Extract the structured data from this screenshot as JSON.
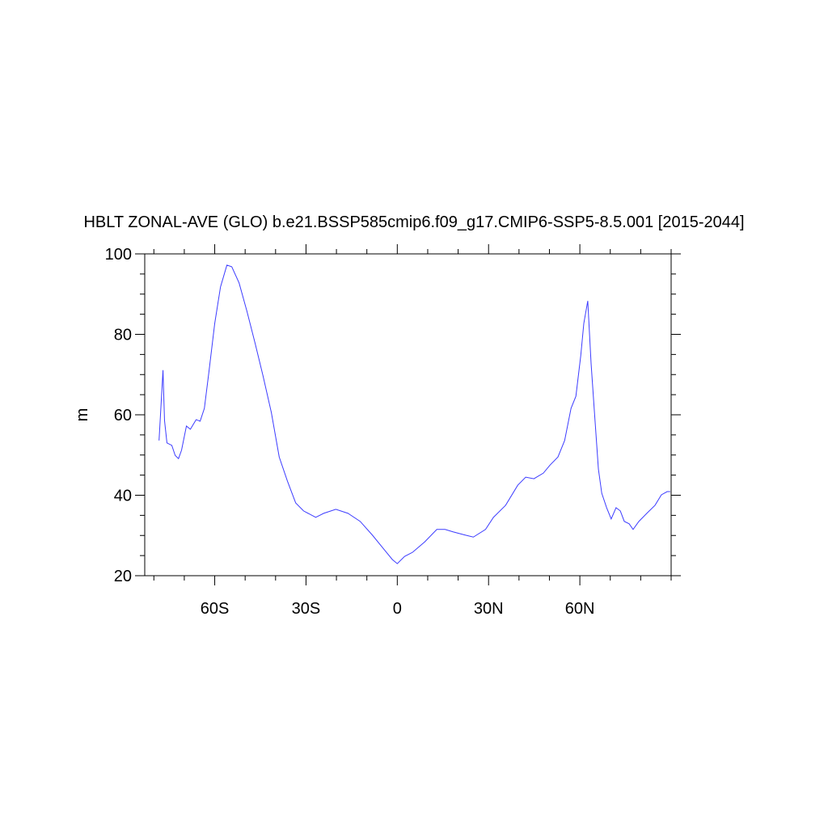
{
  "chart_data": {
    "type": "line",
    "title": "HBLT ZONAL-AVE (GLO) b.e21.BSSP585cmip6.f09_g17.CMIP6-SSP5-8.5.001 [2015-2044]",
    "ylabel": "m",
    "xlim": [
      -83,
      90
    ],
    "ylim": [
      20,
      100
    ],
    "xticks": [
      {
        "value": -60,
        "label": "60S"
      },
      {
        "value": -30,
        "label": "30S"
      },
      0,
      {
        "value": 30,
        "label": "30N"
      },
      {
        "value": 60,
        "label": "60N"
      }
    ],
    "yticks": [
      20,
      40,
      60,
      80,
      100
    ],
    "xminorticks": [
      -80,
      -70,
      -50,
      -40,
      -20,
      -10,
      10,
      20,
      40,
      50,
      70,
      80,
      90
    ],
    "yminorticks": [
      25,
      30,
      35,
      45,
      50,
      55,
      65,
      70,
      75,
      85,
      90,
      95
    ],
    "x": [
      -78.3,
      -77.0,
      -76.5,
      -75.7,
      -74.1,
      -73.0,
      -71.9,
      -70.9,
      -69.3,
      -68.0,
      -66.1,
      -64.8,
      -63.4,
      -61.9,
      -60.0,
      -58.1,
      -56.0,
      -54.4,
      -52.0,
      -49.4,
      -46.7,
      -44.1,
      -41.4,
      -38.8,
      -36.1,
      -33.4,
      -30.8,
      -26.8,
      -24.2,
      -20.2,
      -16.2,
      -12.2,
      -8.2,
      -4.2,
      -1.6,
      0,
      2.4,
      5.0,
      9.0,
      13.0,
      15.7,
      18.3,
      22.3,
      25.0,
      29.0,
      31.6,
      35.6,
      39.6,
      42.2,
      44.9,
      48.0,
      50.2,
      52.8,
      55.0,
      57.1,
      58.7,
      60.3,
      61.3,
      62.6,
      63.7,
      64.8,
      66.1,
      67.2,
      68.8,
      70.3,
      71.9,
      73.3,
      74.6,
      76.2,
      77.5,
      79.4,
      82.0,
      84.7,
      86.8,
      88.7,
      89.7
    ],
    "series": [
      {
        "color": "#3c3cff",
        "values": [
          53.6,
          71.1,
          58.6,
          53.0,
          52.4,
          49.9,
          49.1,
          51.2,
          57.2,
          56.4,
          58.8,
          58.4,
          61.6,
          70.7,
          82.7,
          91.8,
          97.2,
          96.8,
          92.8,
          85.7,
          77.7,
          69.6,
          60.6,
          49.5,
          43.5,
          38.1,
          36.1,
          34.5,
          35.5,
          36.5,
          35.5,
          33.5,
          30.1,
          26.4,
          24.0,
          23.0,
          24.8,
          25.8,
          28.4,
          31.5,
          31.5,
          30.9,
          30.1,
          29.6,
          31.5,
          34.5,
          37.5,
          42.5,
          44.5,
          44.1,
          45.5,
          47.5,
          49.5,
          53.6,
          61.6,
          64.6,
          74.7,
          82.7,
          88.3,
          72.7,
          60.6,
          46.5,
          40.5,
          36.9,
          34.1,
          36.9,
          36.1,
          33.5,
          32.9,
          31.5,
          33.5,
          35.5,
          37.5,
          40.1,
          40.9,
          40.9
        ]
      }
    ]
  }
}
